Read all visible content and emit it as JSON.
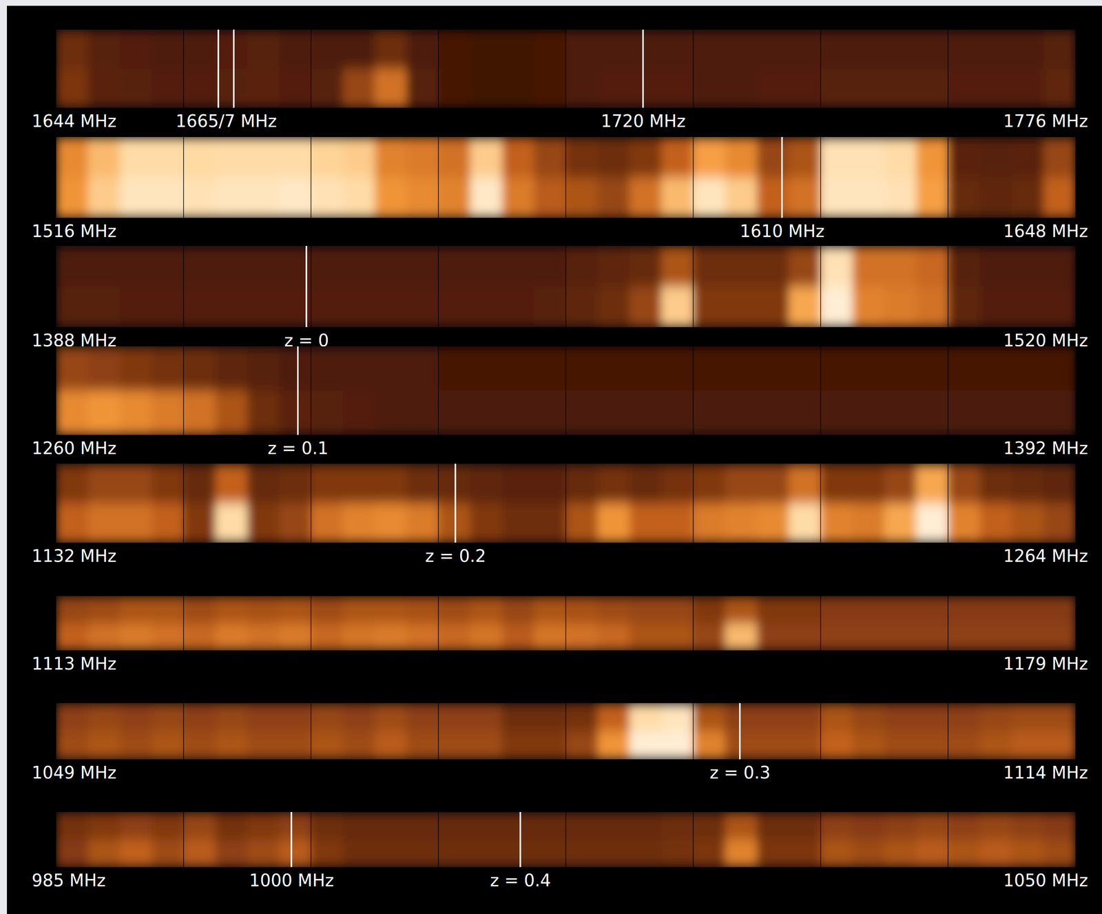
{
  "chart_data": {
    "type": "heatmap",
    "color_range": [
      0,
      100
    ],
    "panels": [
      {
        "xlim": [
          1644,
          1776
        ],
        "xticks": [
          {
            "value": 1644,
            "label": "1644 MHz"
          },
          {
            "value": 1666,
            "label": "1665/7 MHz"
          },
          {
            "value": 1720,
            "label": "1720 MHz"
          },
          {
            "value": 1776,
            "label": "1776 MHz"
          }
        ],
        "lines": [
          1665,
          1667,
          1720
        ],
        "values": [
          [
            30,
            24,
            23,
            22,
            22,
            23,
            24,
            22,
            22,
            22,
            30,
            22,
            20,
            18,
            18,
            20,
            22,
            22,
            22,
            22,
            22,
            22,
            22,
            22,
            22,
            22,
            22,
            22,
            22,
            22,
            22,
            24
          ],
          [
            34,
            25,
            24,
            23,
            23,
            24,
            25,
            23,
            24,
            40,
            55,
            24,
            20,
            18,
            18,
            20,
            22,
            23,
            23,
            23,
            22,
            22,
            23,
            23,
            24,
            24,
            24,
            24,
            23,
            23,
            23,
            26
          ]
        ]
      },
      {
        "xlim": [
          1516,
          1648
        ],
        "xticks": [
          {
            "value": 1516,
            "label": "1516 MHz"
          },
          {
            "value": 1610,
            "label": "1610 MHz"
          },
          {
            "value": 1648,
            "label": "1648 MHz"
          }
        ],
        "lines": [
          1610
        ],
        "values": [
          [
            62,
            75,
            85,
            85,
            84,
            85,
            85,
            85,
            82,
            80,
            60,
            58,
            55,
            80,
            50,
            40,
            32,
            30,
            35,
            50,
            68,
            62,
            40,
            45,
            88,
            88,
            85,
            65,
            25,
            24,
            25,
            40
          ],
          [
            65,
            80,
            90,
            90,
            88,
            90,
            90,
            92,
            88,
            85,
            65,
            62,
            60,
            92,
            58,
            48,
            45,
            40,
            55,
            75,
            90,
            80,
            50,
            55,
            90,
            90,
            88,
            68,
            28,
            26,
            28,
            50
          ]
        ]
      },
      {
        "xlim": [
          1388,
          1520
        ],
        "xticks": [
          {
            "value": 1388,
            "label": "1388 MHz"
          },
          {
            "value": 1420.4,
            "label": "z = 0"
          },
          {
            "value": 1520,
            "label": "1520 MHz"
          }
        ],
        "lines": [
          1420.4
        ],
        "values": [
          [
            22,
            22,
            22,
            22,
            22,
            22,
            22,
            22,
            22,
            22,
            22,
            22,
            22,
            22,
            22,
            22,
            24,
            26,
            28,
            45,
            30,
            30,
            30,
            40,
            88,
            55,
            55,
            52,
            24,
            22,
            22,
            22
          ],
          [
            24,
            24,
            23,
            23,
            23,
            23,
            23,
            23,
            23,
            23,
            23,
            23,
            23,
            23,
            23,
            24,
            26,
            30,
            40,
            80,
            35,
            35,
            35,
            70,
            95,
            60,
            58,
            55,
            26,
            23,
            23,
            23
          ]
        ]
      },
      {
        "xlim": [
          1260,
          1392
        ],
        "xticks": [
          {
            "value": 1260,
            "label": "1260 MHz"
          },
          {
            "value": 1291.3,
            "label": "z = 0.1"
          },
          {
            "value": 1392,
            "label": "1392 MHz"
          }
        ],
        "lines": [
          1291.3
        ],
        "values": [
          [
            40,
            38,
            35,
            32,
            30,
            26,
            24,
            22,
            22,
            22,
            22,
            22,
            20,
            20,
            20,
            20,
            20,
            20,
            20,
            20,
            20,
            20,
            20,
            20,
            20,
            20,
            20,
            20,
            20,
            20,
            20,
            20
          ],
          [
            62,
            65,
            62,
            58,
            55,
            45,
            30,
            25,
            24,
            23,
            22,
            22,
            21,
            21,
            21,
            21,
            21,
            21,
            21,
            21,
            21,
            21,
            21,
            21,
            21,
            21,
            21,
            21,
            21,
            21,
            21,
            21
          ]
        ]
      },
      {
        "xlim": [
          1132,
          1264
        ],
        "xticks": [
          {
            "value": 1132,
            "label": "1132 MHz"
          },
          {
            "value": 1183.7,
            "label": "z = 0.2"
          },
          {
            "value": 1264,
            "label": "1264 MHz"
          }
        ],
        "lines": [
          1183.7
        ],
        "values": [
          [
            35,
            40,
            40,
            35,
            28,
            50,
            28,
            30,
            35,
            35,
            35,
            30,
            28,
            26,
            25,
            25,
            28,
            32,
            28,
            32,
            35,
            40,
            40,
            55,
            35,
            35,
            40,
            70,
            40,
            30,
            28,
            26
          ],
          [
            50,
            55,
            55,
            50,
            35,
            85,
            35,
            40,
            55,
            60,
            62,
            58,
            45,
            35,
            30,
            30,
            45,
            65,
            50,
            50,
            58,
            60,
            62,
            85,
            60,
            58,
            70,
            95,
            60,
            50,
            45,
            40
          ]
        ]
      },
      {
        "xlim": [
          1113,
          1179
        ],
        "xticks": [
          {
            "value": 1113,
            "label": "1113 MHz"
          },
          {
            "value": 1179,
            "label": "1179 MHz"
          }
        ],
        "lines": [],
        "values": [
          [
            40,
            42,
            45,
            45,
            42,
            45,
            44,
            45,
            42,
            45,
            45,
            44,
            42,
            45,
            40,
            45,
            44,
            42,
            40,
            40,
            35,
            45,
            35,
            35,
            36,
            36,
            36,
            36,
            36,
            36,
            36,
            36
          ],
          [
            50,
            55,
            58,
            55,
            52,
            58,
            55,
            58,
            52,
            56,
            58,
            55,
            52,
            56,
            48,
            56,
            55,
            52,
            45,
            45,
            40,
            75,
            38,
            38,
            38,
            38,
            38,
            38,
            38,
            38,
            38,
            38
          ]
        ]
      },
      {
        "xlim": [
          1049,
          1114
        ],
        "xticks": [
          {
            "value": 1049,
            "label": "1049 MHz"
          },
          {
            "value": 1092.6,
            "label": "z = 0.3"
          },
          {
            "value": 1114,
            "label": "1114 MHz"
          }
        ],
        "lines": [
          1092.6
        ],
        "values": [
          [
            38,
            40,
            38,
            40,
            38,
            40,
            38,
            38,
            40,
            38,
            42,
            38,
            38,
            38,
            30,
            30,
            32,
            50,
            85,
            90,
            45,
            38,
            38,
            38,
            45,
            40,
            38,
            38,
            38,
            40,
            42,
            42
          ],
          [
            42,
            45,
            42,
            45,
            42,
            45,
            42,
            42,
            45,
            42,
            48,
            42,
            42,
            42,
            35,
            35,
            40,
            65,
            95,
            95,
            60,
            42,
            42,
            42,
            50,
            45,
            42,
            42,
            42,
            45,
            48,
            48
          ]
        ]
      },
      {
        "xlim": [
          985,
          1050
        ],
        "xticks": [
          {
            "value": 985,
            "label": "985 MHz"
          },
          {
            "value": 1000,
            "label": "1000 MHz"
          },
          {
            "value": 1014.6,
            "label": "z = 0.4"
          },
          {
            "value": 1050,
            "label": "1050 MHz"
          }
        ],
        "lines": [
          1000,
          1014.6
        ],
        "values": [
          [
            32,
            35,
            38,
            35,
            40,
            32,
            35,
            38,
            30,
            28,
            28,
            28,
            28,
            28,
            28,
            28,
            28,
            28,
            28,
            30,
            30,
            45,
            30,
            30,
            38,
            36,
            38,
            40,
            38,
            40,
            38,
            36
          ],
          [
            36,
            45,
            50,
            42,
            48,
            38,
            42,
            48,
            35,
            30,
            30,
            30,
            30,
            30,
            30,
            30,
            30,
            30,
            30,
            32,
            34,
            60,
            34,
            34,
            45,
            42,
            45,
            48,
            45,
            48,
            45,
            42
          ]
        ]
      }
    ]
  }
}
